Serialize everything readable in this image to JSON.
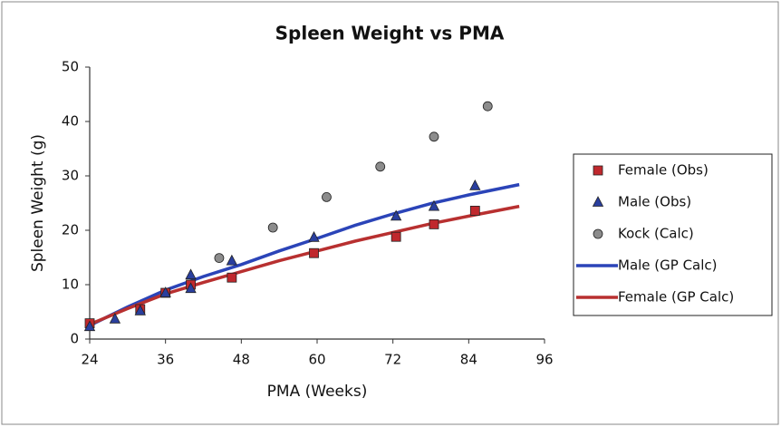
{
  "chart_data": {
    "type": "scatter-line",
    "title": "Spleen Weight vs PMA",
    "x_label": "PMA (Weeks)",
    "y_label": "Spleen Weight (g)",
    "xlim": [
      24,
      96
    ],
    "xticks": [
      24,
      36,
      48,
      60,
      72,
      84,
      96
    ],
    "ylim": [
      0,
      50
    ],
    "yticks": [
      0,
      10,
      20,
      30,
      40,
      50
    ],
    "grid": false,
    "legend": "right",
    "series": [
      {
        "name": "Female (Obs)",
        "type": "scatter",
        "marker": "square",
        "color": "#c0282d",
        "x": [
          24,
          32,
          36,
          40,
          46.5,
          59.5,
          72.5,
          78.5,
          85
        ],
        "values": [
          2.9,
          5.5,
          8.5,
          10.0,
          11.3,
          15.8,
          18.8,
          21.1,
          23.6
        ]
      },
      {
        "name": "Male (Obs)",
        "type": "scatter",
        "marker": "triangle",
        "color": "#2a3f9e",
        "x": [
          24,
          28,
          32,
          36,
          40,
          40,
          46.5,
          59.5,
          72.5,
          78.5,
          85
        ],
        "values": [
          2.3,
          3.7,
          5.2,
          8.5,
          11.8,
          9.3,
          14.4,
          18.7,
          22.6,
          24.4,
          28.2
        ]
      },
      {
        "name": "Kock (Calc)",
        "type": "scatter",
        "marker": "circle",
        "color": "#8c8c8c",
        "x": [
          44.5,
          53,
          61.5,
          70,
          78.5,
          87
        ],
        "values": [
          14.9,
          20.5,
          26.1,
          31.7,
          37.2,
          42.8
        ]
      },
      {
        "name": "Male (GP Calc)",
        "type": "line",
        "color": "#2b44b8",
        "x": [
          24,
          30,
          36,
          42,
          48,
          54,
          60,
          66,
          72,
          78,
          84,
          92
        ],
        "values": [
          2.5,
          5.9,
          9.0,
          11.5,
          13.7,
          16.2,
          18.5,
          20.9,
          23.0,
          24.9,
          26.5,
          28.4
        ]
      },
      {
        "name": "Female (GP Calc)",
        "type": "line",
        "color": "#b83030",
        "x": [
          24,
          30,
          36,
          42,
          48,
          54,
          60,
          66,
          72,
          78,
          84,
          92
        ],
        "values": [
          2.7,
          5.6,
          8.3,
          10.4,
          12.4,
          14.4,
          16.2,
          18.0,
          19.6,
          21.2,
          22.6,
          24.4
        ]
      }
    ]
  }
}
